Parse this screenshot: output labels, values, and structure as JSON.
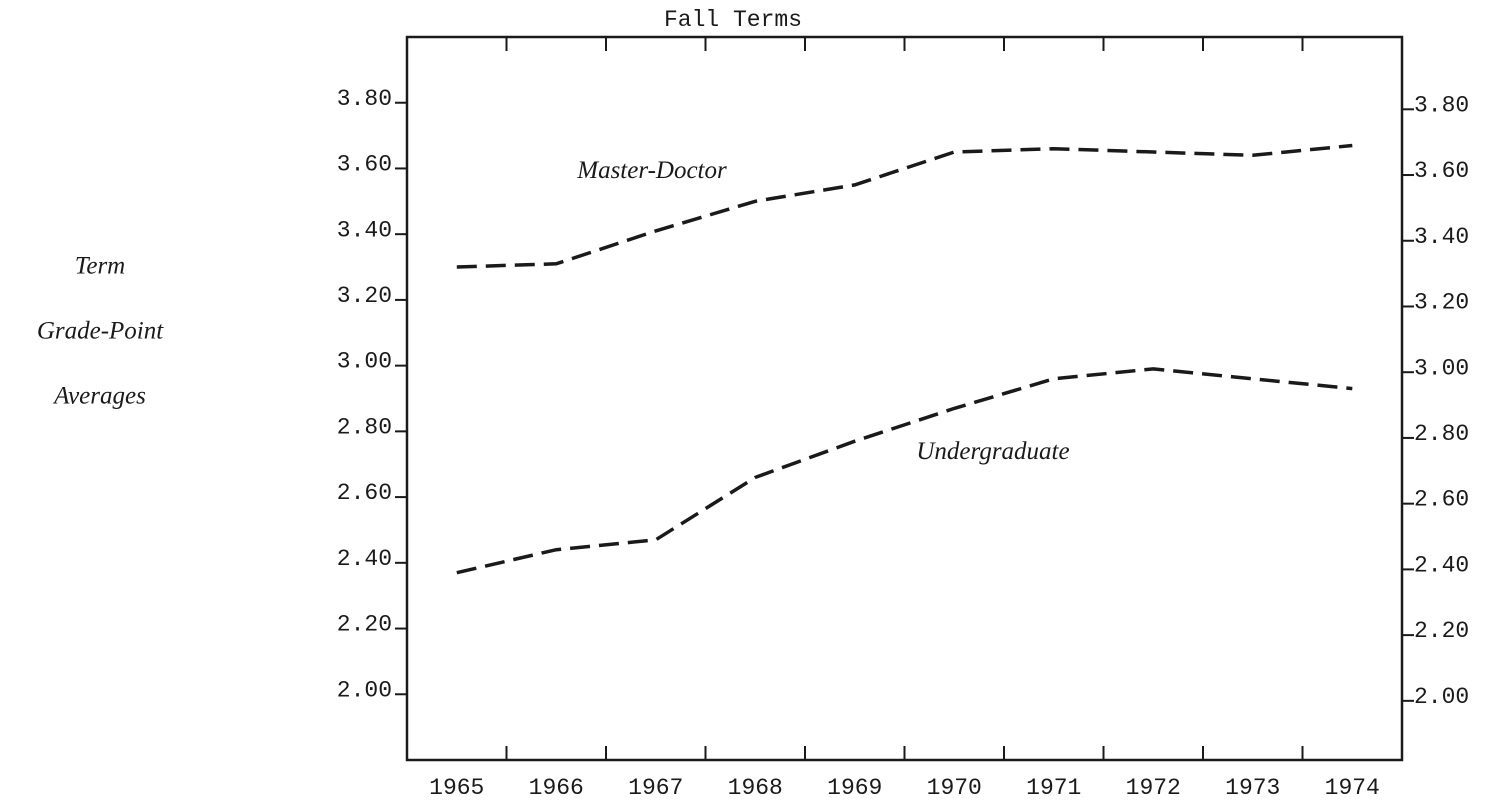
{
  "chart_data": {
    "type": "line",
    "title": "Fall Terms",
    "y_label": [
      "Term",
      "Grade-Point",
      "Averages"
    ],
    "categories": [
      "1965",
      "1966",
      "1967",
      "1968",
      "1969",
      "1970",
      "1971",
      "1972",
      "1973",
      "1974"
    ],
    "series": [
      {
        "name": "Master-Doctor",
        "color": "#1a1a1a",
        "values": [
          3.3,
          3.31,
          3.41,
          3.5,
          3.55,
          3.65,
          3.66,
          3.65,
          3.64,
          3.67
        ]
      },
      {
        "name": "Undergraduate",
        "color": "#1a1a1a",
        "values": [
          2.37,
          2.44,
          2.47,
          2.66,
          2.77,
          2.87,
          2.96,
          2.99,
          2.96,
          2.93
        ]
      }
    ],
    "ylim": [
      1.8,
      4.0
    ],
    "yticks": [
      {
        "value": 2.0,
        "label": "2.00"
      },
      {
        "value": 2.2,
        "label": "2.20"
      },
      {
        "value": 2.4,
        "label": "2.40"
      },
      {
        "value": 2.6,
        "label": "2.60"
      },
      {
        "value": 2.8,
        "label": "2.80"
      },
      {
        "value": 3.0,
        "label": "3.00"
      },
      {
        "value": 3.2,
        "label": "3.20"
      },
      {
        "value": 3.4,
        "label": "3.40"
      },
      {
        "value": 3.6,
        "label": "3.60"
      },
      {
        "value": 3.8,
        "label": "3.80"
      }
    ],
    "y2lim": [
      1.82,
      4.02
    ],
    "y2ticks": [
      {
        "value": 2.0,
        "label": "2.00"
      },
      {
        "value": 2.2,
        "label": "2.20"
      },
      {
        "value": 2.4,
        "label": "2.40"
      },
      {
        "value": 2.6,
        "label": "2.60"
      },
      {
        "value": 2.8,
        "label": "2.80"
      },
      {
        "value": 3.0,
        "label": "3.00"
      },
      {
        "value": 3.2,
        "label": "3.20"
      },
      {
        "value": 3.4,
        "label": "3.40"
      },
      {
        "value": 3.6,
        "label": "3.60"
      },
      {
        "value": 3.8,
        "label": "3.80"
      }
    ],
    "grid": false
  }
}
